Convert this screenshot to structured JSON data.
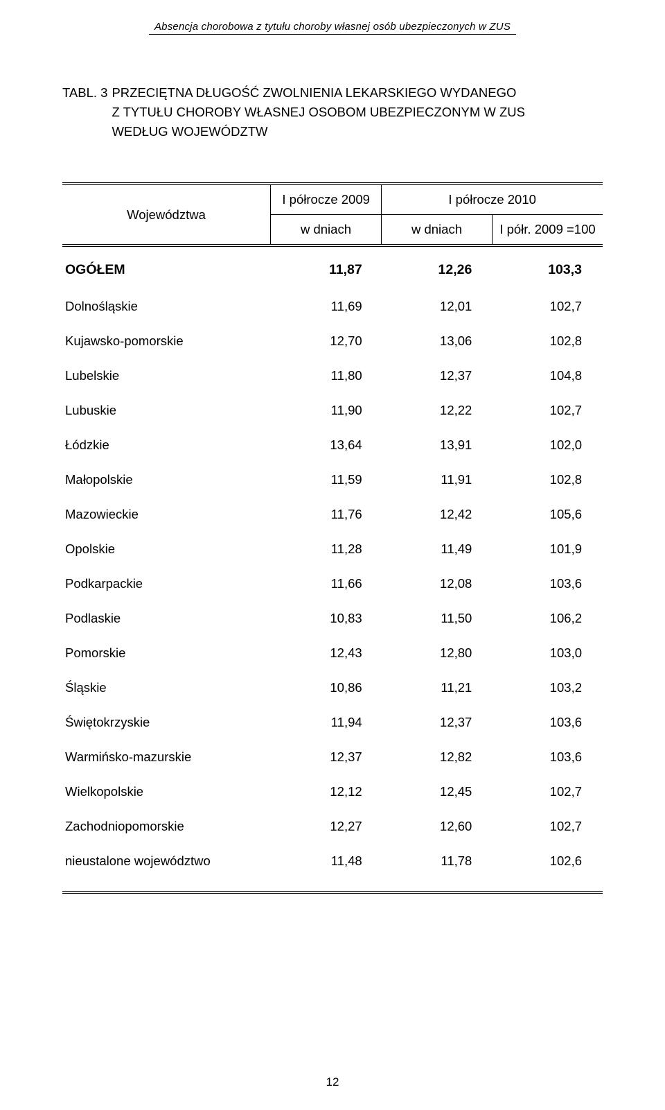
{
  "running_header": "Absencja chorobowa z tytułu choroby własnej osób ubezpieczonych w ZUS",
  "table_number_label": "TABL. 3",
  "table_title_line1": "PRZECIĘTNA DŁUGOŚĆ ZWOLNIENIA LEKARSKIEGO WYDANEGO",
  "table_title_line2": "Z TYTUŁU CHOROBY WŁASNEJ OSOBOM UBEZPIECZONYM W ZUS",
  "table_title_line3": "WEDŁUG WOJEWÓDZTW",
  "header": {
    "stub": "Województwa",
    "group_left": "I półrocze 2009",
    "group_right": "I półrocze 2010",
    "sub_c1": "w dniach",
    "sub_c2": "w dniach",
    "sub_c3": "I półr. 2009 =100"
  },
  "total_row": {
    "label": "OGÓŁEM",
    "c1": "11,87",
    "c2": "12,26",
    "c3": "103,3"
  },
  "rows": [
    {
      "label": "Dolnośląskie",
      "c1": "11,69",
      "c2": "12,01",
      "c3": "102,7"
    },
    {
      "label": "Kujawsko-pomorskie",
      "c1": "12,70",
      "c2": "13,06",
      "c3": "102,8"
    },
    {
      "label": "Lubelskie",
      "c1": "11,80",
      "c2": "12,37",
      "c3": "104,8"
    },
    {
      "label": "Lubuskie",
      "c1": "11,90",
      "c2": "12,22",
      "c3": "102,7"
    },
    {
      "label": "Łódzkie",
      "c1": "13,64",
      "c2": "13,91",
      "c3": "102,0"
    },
    {
      "label": "Małopolskie",
      "c1": "11,59",
      "c2": "11,91",
      "c3": "102,8"
    },
    {
      "label": "Mazowieckie",
      "c1": "11,76",
      "c2": "12,42",
      "c3": "105,6"
    },
    {
      "label": "Opolskie",
      "c1": "11,28",
      "c2": "11,49",
      "c3": "101,9"
    },
    {
      "label": "Podkarpackie",
      "c1": "11,66",
      "c2": "12,08",
      "c3": "103,6"
    },
    {
      "label": "Podlaskie",
      "c1": "10,83",
      "c2": "11,50",
      "c3": "106,2"
    },
    {
      "label": "Pomorskie",
      "c1": "12,43",
      "c2": "12,80",
      "c3": "103,0"
    },
    {
      "label": "Śląskie",
      "c1": "10,86",
      "c2": "11,21",
      "c3": "103,2"
    },
    {
      "label": "Świętokrzyskie",
      "c1": "11,94",
      "c2": "12,37",
      "c3": "103,6"
    },
    {
      "label": "Warmińsko-mazurskie",
      "c1": "12,37",
      "c2": "12,82",
      "c3": "103,6"
    },
    {
      "label": "Wielkopolskie",
      "c1": "12,12",
      "c2": "12,45",
      "c3": "102,7"
    },
    {
      "label": "Zachodniopomorskie",
      "c1": "12,27",
      "c2": "12,60",
      "c3": "102,7"
    },
    {
      "label": "nieustalone województwo",
      "c1": "11,48",
      "c2": "11,78",
      "c3": "102,6"
    }
  ],
  "page_number": "12",
  "style": {
    "background_color": "#ffffff",
    "text_color": "#000000",
    "body_fontsize_pt": 14,
    "header_fontsize_pt": 14,
    "double_rule_color": "#000000",
    "single_rule_color": "#000000",
    "font_family": "Arial, Helvetica, sans-serif",
    "total_weight": "bold"
  }
}
